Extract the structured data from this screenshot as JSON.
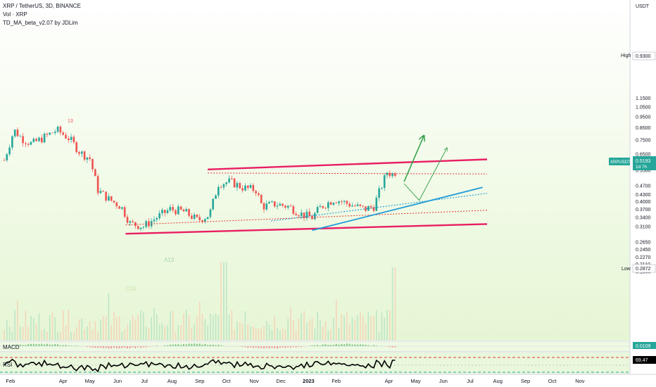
{
  "header": {
    "symbol_line": "XRP / TetherUS, 3D, BINANCE",
    "vol_label": "Vol · XRP",
    "indicator_label": "TD_MA_beta_v2.07 by JDLim"
  },
  "price_axis": {
    "unit": "USDT",
    "ticks": [
      "1.1500",
      "1.0500",
      "0.9500",
      "0.8500",
      "0.7500",
      "0.6500",
      "0.5900",
      "0.5500",
      "0.4700",
      "0.4300",
      "0.4000",
      "0.3700",
      "0.3400",
      "0.3100",
      "0.2650",
      "0.2450",
      "0.2270",
      "0.2110",
      "0.1960"
    ]
  },
  "badges": {
    "high_label": "High",
    "high_value": "0.9300",
    "low_label": "Low",
    "low_value": "0.2872",
    "symbol_tag": "XRPUSDT",
    "last_price": "0.5193",
    "countdown": "1d 7h",
    "macd_value": "0.0109",
    "rsi_value": "69.47"
  },
  "panels": {
    "macd_label": "MACD",
    "rsi_label": "RSI"
  },
  "annotations": {
    "td_13": "13",
    "td_a13": "A13",
    "td_c13": "C13"
  },
  "x_axis": {
    "ticks": [
      "Feb",
      "Apr",
      "May",
      "Jun",
      "Jul",
      "Aug",
      "Sep",
      "Oct",
      "Nov",
      "Dec",
      "2023",
      "Feb",
      "Apr",
      "May",
      "Jun",
      "Jul",
      "Aug",
      "Sep",
      "Oct",
      "Nov"
    ]
  },
  "colors": {
    "up": "#26a69a",
    "down": "#ef5350",
    "channel": "#e91e63",
    "trendline": "#1e9bd7",
    "projection": "#2e9e44",
    "background_top": "#ffffff",
    "background_bottom": "#e8f7d7",
    "rsi_line": "#000000"
  },
  "chart_data": {
    "type": "candlestick",
    "timeframe": "3D",
    "price_scale": "log",
    "ylim": [
      0.19,
      1.2
    ],
    "last_price": 0.5193,
    "high": 0.93,
    "low": 0.2872,
    "price_path": [
      {
        "date": "2022-01-25",
        "close": 0.61
      },
      {
        "date": "2022-02-05",
        "close": 0.83
      },
      {
        "date": "2022-02-14",
        "close": 0.76
      },
      {
        "date": "2022-02-25",
        "close": 0.72
      },
      {
        "date": "2022-03-08",
        "close": 0.76
      },
      {
        "date": "2022-03-25",
        "close": 0.83
      },
      {
        "date": "2022-04-08",
        "close": 0.76
      },
      {
        "date": "2022-04-20",
        "close": 0.66
      },
      {
        "date": "2022-05-01",
        "close": 0.62
      },
      {
        "date": "2022-05-10",
        "close": 0.45
      },
      {
        "date": "2022-05-22",
        "close": 0.41
      },
      {
        "date": "2022-06-05",
        "close": 0.38
      },
      {
        "date": "2022-06-15",
        "close": 0.32
      },
      {
        "date": "2022-06-30",
        "close": 0.31
      },
      {
        "date": "2022-07-15",
        "close": 0.34
      },
      {
        "date": "2022-07-30",
        "close": 0.37
      },
      {
        "date": "2022-08-15",
        "close": 0.36
      },
      {
        "date": "2022-08-30",
        "close": 0.33
      },
      {
        "date": "2022-09-12",
        "close": 0.35
      },
      {
        "date": "2022-09-22",
        "close": 0.48
      },
      {
        "date": "2022-10-05",
        "close": 0.49
      },
      {
        "date": "2022-10-20",
        "close": 0.46
      },
      {
        "date": "2022-11-03",
        "close": 0.45
      },
      {
        "date": "2022-11-10",
        "close": 0.38
      },
      {
        "date": "2022-11-25",
        "close": 0.39
      },
      {
        "date": "2022-12-10",
        "close": 0.38
      },
      {
        "date": "2022-12-25",
        "close": 0.35
      },
      {
        "date": "2023-01-05",
        "close": 0.34
      },
      {
        "date": "2023-01-15",
        "close": 0.38
      },
      {
        "date": "2023-01-30",
        "close": 0.41
      },
      {
        "date": "2023-02-15",
        "close": 0.39
      },
      {
        "date": "2023-03-05",
        "close": 0.37
      },
      {
        "date": "2023-03-15",
        "close": 0.38
      },
      {
        "date": "2023-03-22",
        "close": 0.45
      },
      {
        "date": "2023-03-30",
        "close": 0.54
      },
      {
        "date": "2023-04-10",
        "close": 0.5193
      }
    ],
    "drawings": {
      "channel_upper": [
        [
          "2022-09-10",
          0.555
        ],
        [
          "2023-07-20",
          0.615
        ]
      ],
      "channel_lower": [
        [
          "2022-06-10",
          0.288
        ],
        [
          "2023-07-20",
          0.318
        ]
      ],
      "resistance_dotted": [
        [
          "2022-09-10",
          0.535
        ],
        [
          "2023-07-20",
          0.53
        ]
      ],
      "support_dotted": [
        [
          "2022-06-10",
          0.315
        ],
        [
          "2023-07-20",
          0.366
        ]
      ],
      "ascending_trend": [
        [
          "2023-01-05",
          0.298
        ],
        [
          "2023-07-15",
          0.462
        ]
      ],
      "ascending_dotted": [
        [
          "2022-11-20",
          0.328
        ],
        [
          "2023-07-20",
          0.435
        ]
      ],
      "projection_bullish": [
        [
          "2023-04-18",
          0.49
        ],
        [
          "2023-05-10",
          0.78
        ]
      ],
      "projection_alternate": [
        [
          "2023-04-18",
          0.48
        ],
        [
          "2023-05-05",
          0.405
        ],
        [
          "2023-06-05",
          0.69
        ]
      ]
    }
  }
}
